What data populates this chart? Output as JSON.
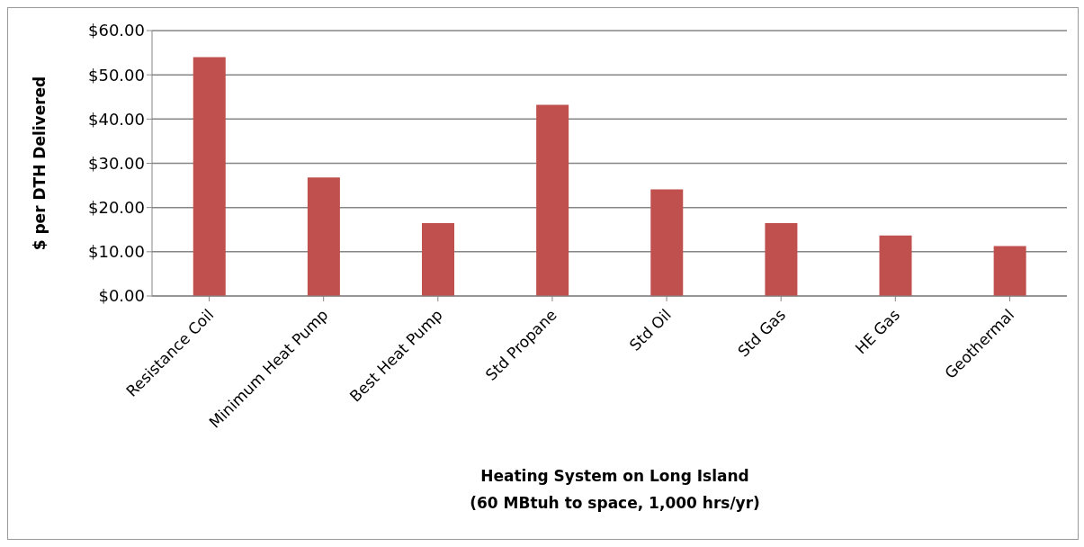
{
  "chart_data": {
    "type": "bar",
    "xlabel": "Heating System on Long Island\n(60 MBtuh to space, 1,000 hrs/yr)",
    "ylabel": "$ per DTH Delivered",
    "categories": [
      "Resistance Coil",
      "Minimum Heat Pump",
      "Best Heat Pump",
      "Std Propane",
      "Std Oil",
      "Std Gas",
      "HE Gas",
      "Geothermal"
    ],
    "values": [
      54.0,
      26.8,
      16.5,
      43.2,
      24.1,
      16.5,
      13.7,
      11.3
    ],
    "color": "#c0504d",
    "ylim": [
      0,
      60
    ],
    "yticks": [
      {
        "value": 0,
        "label": "$0.00"
      },
      {
        "value": 10,
        "label": "$10.00"
      },
      {
        "value": 20,
        "label": "$20.00"
      },
      {
        "value": 30,
        "label": "$30.00"
      },
      {
        "value": 40,
        "label": "$40.00"
      },
      {
        "value": 50,
        "label": "$50.00"
      },
      {
        "value": 60,
        "label": "$60.00"
      }
    ],
    "grid": "y",
    "legend": false
  }
}
